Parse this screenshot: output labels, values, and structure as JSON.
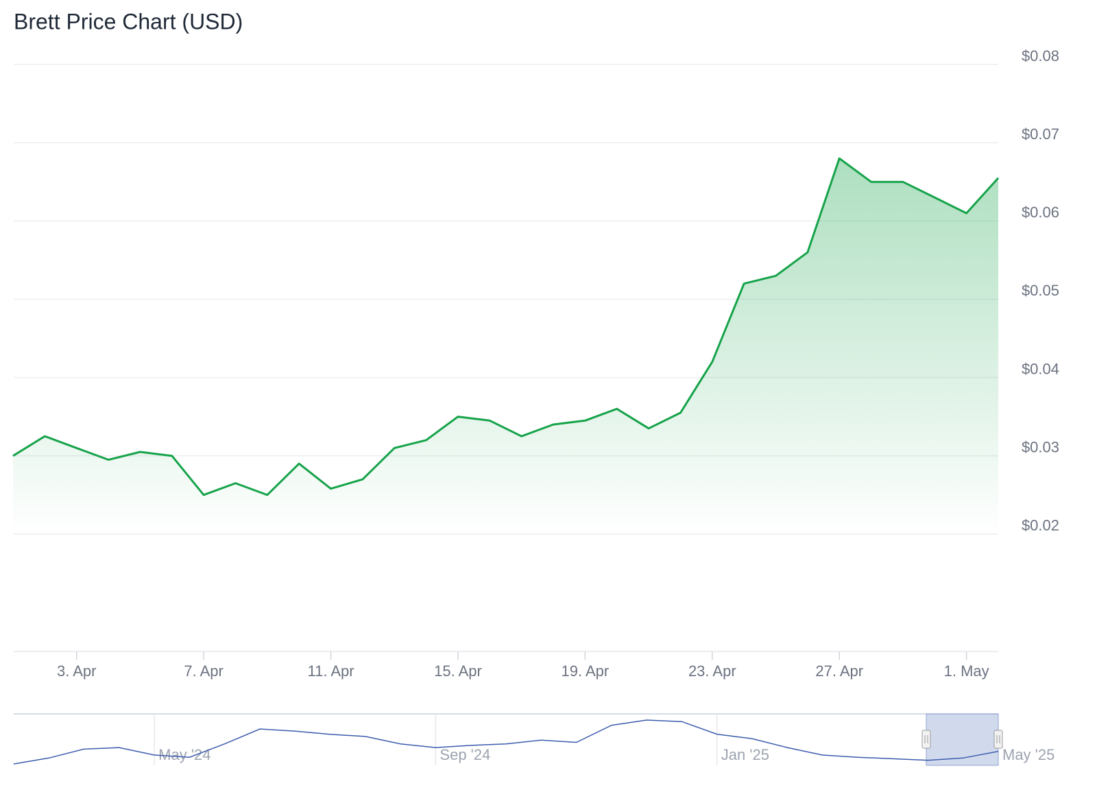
{
  "chart_data": [
    {
      "type": "area-line",
      "title": "Brett Price Chart (USD)",
      "categories": [
        "1. Apr",
        "2. Apr",
        "3. Apr",
        "4. Apr",
        "5. Apr",
        "6. Apr",
        "7. Apr",
        "8. Apr",
        "9. Apr",
        "10. Apr",
        "11. Apr",
        "12. Apr",
        "13. Apr",
        "14. Apr",
        "15. Apr",
        "16. Apr",
        "17. Apr",
        "18. Apr",
        "19. Apr",
        "20. Apr",
        "21. Apr",
        "22. Apr",
        "23. Apr",
        "24. Apr",
        "25. Apr",
        "26. Apr",
        "27. Apr",
        "28. Apr",
        "29. Apr",
        "30. Apr",
        "1. May",
        "2. May"
      ],
      "values": [
        0.03,
        0.0325,
        0.031,
        0.0295,
        0.0305,
        0.03,
        0.025,
        0.0265,
        0.025,
        0.029,
        0.0258,
        0.027,
        0.031,
        0.032,
        0.035,
        0.0345,
        0.0325,
        0.034,
        0.0345,
        0.036,
        0.0335,
        0.0355,
        0.042,
        0.052,
        0.053,
        0.056,
        0.068,
        0.065,
        0.065,
        0.063,
        0.061,
        0.0655
      ],
      "color": "#16a34a",
      "xticks": [
        "3. Apr",
        "7. Apr",
        "11. Apr",
        "15. Apr",
        "19. Apr",
        "23. Apr",
        "27. Apr",
        "1. May"
      ],
      "ylim": [
        0.005,
        0.08
      ],
      "yticks": [
        {
          "value": 0.02,
          "label": "$0.02"
        },
        {
          "value": 0.03,
          "label": "$0.03"
        },
        {
          "value": 0.04,
          "label": "$0.04"
        },
        {
          "value": 0.05,
          "label": "$0.05"
        },
        {
          "value": 0.06,
          "label": "$0.06"
        },
        {
          "value": 0.07,
          "label": "$0.07"
        },
        {
          "value": 0.08,
          "label": "$0.08"
        }
      ],
      "grid": true
    },
    {
      "type": "navigator",
      "categories": [
        null,
        null,
        null,
        null,
        "May '24",
        null,
        null,
        null,
        null,
        null,
        null,
        null,
        "Sep '24",
        null,
        null,
        null,
        null,
        null,
        null,
        null,
        "Jan '25",
        null,
        null,
        null,
        null,
        null,
        null,
        null,
        "May '25"
      ],
      "values": [
        0.0055,
        0.0335,
        0.0755,
        0.0825,
        0.0475,
        0.037,
        0.1,
        0.17,
        0.16,
        0.145,
        0.135,
        0.1,
        0.0825,
        0.093,
        0.1,
        0.1175,
        0.107,
        0.1875,
        0.212,
        0.205,
        0.1455,
        0.1245,
        0.0825,
        0.0475,
        0.037,
        0.03,
        0.023,
        0.0335,
        0.065
      ],
      "color": "#3b5bad"
    }
  ]
}
